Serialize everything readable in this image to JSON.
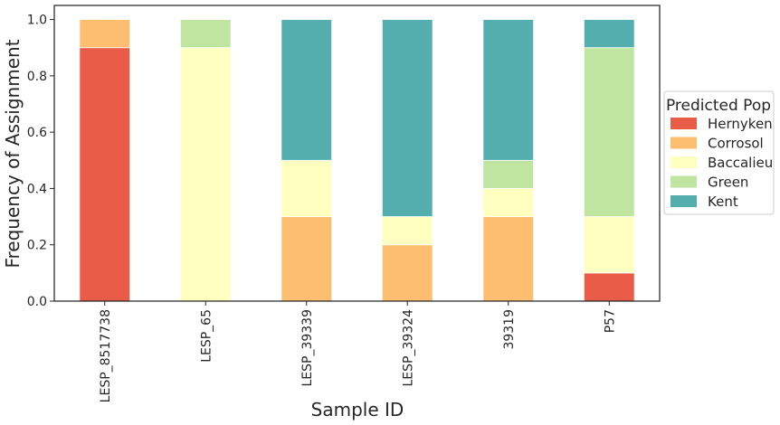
{
  "chart_data": {
    "type": "bar",
    "stacked": true,
    "categories": [
      "LESP_8517738",
      "LESP_65",
      "LESP_39339",
      "LESP_39324",
      "39319",
      "P57"
    ],
    "series": [
      {
        "name": "Hernyken",
        "color": "#e95c47",
        "values": [
          0.9,
          0.0,
          0.0,
          0.0,
          0.0,
          0.1
        ]
      },
      {
        "name": "Corrosol",
        "color": "#fdbf6f",
        "values": [
          0.1,
          0.0,
          0.3,
          0.2,
          0.3,
          0.0
        ]
      },
      {
        "name": "Baccalieu",
        "color": "#ffffbf",
        "values": [
          0.0,
          0.9,
          0.2,
          0.1,
          0.1,
          0.2
        ]
      },
      {
        "name": "Green",
        "color": "#bfe5a0",
        "values": [
          0.0,
          0.1,
          0.0,
          0.0,
          0.1,
          0.6
        ]
      },
      {
        "name": "Kent",
        "color": "#54aead",
        "values": [
          0.0,
          0.0,
          0.5,
          0.7,
          0.5,
          0.1
        ]
      }
    ],
    "xlabel": "Sample ID",
    "ylabel": "Frequency of Assignment",
    "ylim": [
      0,
      1.05
    ],
    "yticks": [
      "0.0",
      "0.2",
      "0.4",
      "0.6",
      "0.8",
      "1.0"
    ],
    "legend": {
      "title": "Predicted Pop",
      "position": "right"
    },
    "grid": false
  }
}
